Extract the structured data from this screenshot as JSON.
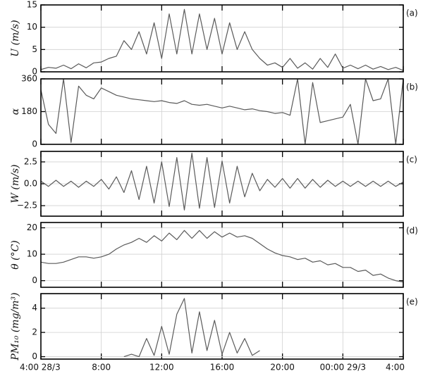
{
  "chart_data": [
    {
      "type": "line",
      "ylabel": "U (m/s)",
      "panel_label": "(a)",
      "grid": true,
      "x": [
        4,
        4.5,
        5,
        5.5,
        6,
        6.5,
        7,
        7.5,
        8,
        8.5,
        9,
        9.5,
        10,
        10.5,
        11,
        11.5,
        12,
        12.5,
        13,
        13.5,
        14,
        14.5,
        15,
        15.5,
        16,
        16.5,
        17,
        17.5,
        18,
        18.5,
        19,
        19.5,
        20,
        20.5,
        21,
        21.5,
        22,
        22.5,
        23,
        23.5,
        24,
        24.5,
        25,
        25.5,
        26,
        26.5,
        27,
        27.5,
        28
      ],
      "series": [
        {
          "color": "#5a5a5a",
          "values": [
            0.5,
            1,
            0.8,
            1.5,
            0.7,
            1.8,
            0.9,
            2,
            2.2,
            3,
            3.5,
            7,
            5,
            9,
            4,
            11,
            3,
            13,
            4,
            14,
            4,
            13,
            5,
            12,
            4,
            11,
            5,
            9,
            5,
            3,
            1.5,
            2,
            1,
            3,
            0.8,
            2,
            0.6,
            3,
            1,
            4,
            0.8,
            1.5,
            0.7,
            1.5,
            0.6,
            1.2,
            0.5,
            1,
            0.3
          ]
        }
      ],
      "xlim": [
        4,
        28
      ],
      "xticks": [
        4,
        8,
        12,
        16,
        20,
        24,
        28
      ],
      "ylim": [
        0,
        15
      ],
      "yticks": [
        0,
        5,
        10,
        15
      ]
    },
    {
      "type": "line",
      "ylabel": "α",
      "panel_label": "(b)",
      "grid": true,
      "x": [
        4,
        4.5,
        5,
        5.5,
        6,
        6.5,
        7,
        7.5,
        8,
        8.5,
        9,
        9.5,
        10,
        10.5,
        11,
        11.5,
        12,
        12.5,
        13,
        13.5,
        14,
        14.5,
        15,
        15.5,
        16,
        16.5,
        17,
        17.5,
        18,
        18.5,
        19,
        19.5,
        20,
        20.5,
        21,
        21.5,
        22,
        22.5,
        23,
        23.5,
        24,
        24.5,
        25,
        25.5,
        26,
        26.5,
        27,
        27.5,
        28
      ],
      "series": [
        {
          "color": "#5a5a5a",
          "values": [
            300,
            110,
            60,
            360,
            10,
            320,
            270,
            250,
            310,
            290,
            270,
            260,
            250,
            245,
            240,
            235,
            240,
            230,
            225,
            240,
            220,
            215,
            220,
            210,
            200,
            210,
            200,
            190,
            195,
            185,
            180,
            170,
            175,
            160,
            360,
            0,
            340,
            120,
            130,
            140,
            150,
            220,
            0,
            360,
            240,
            250,
            360,
            0,
            360
          ]
        }
      ],
      "xlim": [
        4,
        28
      ],
      "xticks": [
        4,
        8,
        12,
        16,
        20,
        24,
        28
      ],
      "ylim": [
        0,
        360
      ],
      "yticks": [
        0,
        180,
        360
      ]
    },
    {
      "type": "line",
      "ylabel": "W (m/s)",
      "panel_label": "(c)",
      "grid": true,
      "x": [
        4,
        4.5,
        5,
        5.5,
        6,
        6.5,
        7,
        7.5,
        8,
        8.5,
        9,
        9.5,
        10,
        10.5,
        11,
        11.5,
        12,
        12.5,
        13,
        13.5,
        14,
        14.5,
        15,
        15.5,
        16,
        16.5,
        17,
        17.5,
        18,
        18.5,
        19,
        19.5,
        20,
        20.5,
        21,
        21.5,
        22,
        22.5,
        23,
        23.5,
        24,
        24.5,
        25,
        25.5,
        26,
        26.5,
        27,
        27.5,
        28
      ],
      "series": [
        {
          "color": "#5a5a5a",
          "values": [
            0.3,
            -0.3,
            0.4,
            -0.3,
            0.3,
            -0.4,
            0.3,
            -0.3,
            0.5,
            -0.6,
            0.8,
            -1,
            1.5,
            -1.8,
            2,
            -2.2,
            2.5,
            -2.6,
            3,
            -3,
            3.5,
            -2.8,
            3,
            -2.7,
            2.6,
            -2.2,
            2,
            -1.5,
            1.2,
            -0.8,
            0.5,
            -0.4,
            0.6,
            -0.5,
            0.6,
            -0.5,
            0.5,
            -0.4,
            0.4,
            -0.3,
            0.3,
            -0.3,
            0.3,
            -0.3,
            0.3,
            -0.3,
            0.3,
            -0.3,
            0.2
          ]
        }
      ],
      "xlim": [
        4,
        28
      ],
      "xticks": [
        4,
        8,
        12,
        16,
        20,
        24,
        28
      ],
      "ylim": [
        -3.7,
        3.7
      ],
      "yticks": [
        {
          "value": -2.5,
          "label": "−2.5"
        },
        {
          "value": 0,
          "label": "0.0"
        },
        2.5
      ]
    },
    {
      "type": "line",
      "ylabel": "θ (°C)",
      "panel_label": "(d)",
      "grid": true,
      "x": [
        4,
        4.5,
        5,
        5.5,
        6,
        6.5,
        7,
        7.5,
        8,
        8.5,
        9,
        9.5,
        10,
        10.5,
        11,
        11.5,
        12,
        12.5,
        13,
        13.5,
        14,
        14.5,
        15,
        15.5,
        16,
        16.5,
        17,
        17.5,
        18,
        18.5,
        19,
        19.5,
        20,
        20.5,
        21,
        21.5,
        22,
        22.5,
        23,
        23.5,
        24,
        24.5,
        25,
        25.5,
        26,
        26.5,
        27,
        27.5,
        28
      ],
      "series": [
        {
          "color": "#5a5a5a",
          "values": [
            7,
            6.5,
            6.5,
            7,
            8,
            9,
            9,
            8.5,
            9,
            10,
            12,
            13.5,
            14.5,
            16,
            14.5,
            17,
            15,
            18,
            15.5,
            19,
            16,
            19,
            16,
            18.5,
            16.5,
            18,
            16.5,
            17,
            16,
            14,
            12,
            10.5,
            9.5,
            9,
            8,
            8.5,
            7,
            7.5,
            6,
            6.5,
            5,
            5,
            3.5,
            4,
            2,
            2.5,
            1,
            0,
            -0.5
          ]
        }
      ],
      "xlim": [
        4,
        28
      ],
      "xticks": [
        4,
        8,
        12,
        16,
        20,
        24,
        28
      ],
      "ylim": [
        -2.5,
        22
      ],
      "yticks": [
        0,
        10,
        20
      ]
    },
    {
      "type": "line",
      "ylabel": "PM₁₀ (mg/m³)",
      "panel_label": "(e)",
      "grid": true,
      "x": [
        4,
        4.5,
        5,
        5.5,
        6,
        6.5,
        7,
        7.5,
        8,
        8.5,
        9,
        9.5,
        10,
        10.5,
        11,
        11.5,
        12,
        12.5,
        13,
        13.5,
        14,
        14.5,
        15,
        15.5,
        16,
        16.5,
        17,
        17.5,
        18,
        18.5,
        19,
        19.5,
        20,
        20.5,
        21,
        21.5,
        22,
        22.5,
        23,
        23.5,
        24,
        24.5,
        25,
        25.5,
        26,
        26.5,
        27,
        27.5,
        28
      ],
      "series": [
        {
          "color": "#5a5a5a",
          "values": [
            null,
            null,
            null,
            null,
            null,
            null,
            null,
            null,
            null,
            null,
            null,
            0,
            0.2,
            0,
            1.5,
            0.1,
            2.5,
            0.2,
            3.5,
            4.8,
            0.3,
            3.7,
            0.5,
            3,
            0.2,
            2,
            0.3,
            1.5,
            0.1,
            0.5,
            null,
            null,
            null,
            null,
            null,
            null,
            null,
            null,
            null,
            null,
            null,
            null,
            null,
            null,
            null,
            null,
            null,
            null,
            null
          ]
        }
      ],
      "xlim": [
        4,
        28
      ],
      "xticks": [
        {
          "value": 4,
          "label": "4:00 28/3"
        },
        {
          "value": 8,
          "label": "8:00"
        },
        {
          "value": 12,
          "label": "12:00"
        },
        {
          "value": 16,
          "label": "16:00"
        },
        {
          "value": 20,
          "label": "20:00"
        },
        {
          "value": 24,
          "label": "00:00 29/3"
        },
        {
          "value": 28,
          "label": "4:00"
        }
      ],
      "ylim": [
        -0.2,
        5.2
      ],
      "yticks": [
        0,
        2,
        4
      ]
    }
  ]
}
